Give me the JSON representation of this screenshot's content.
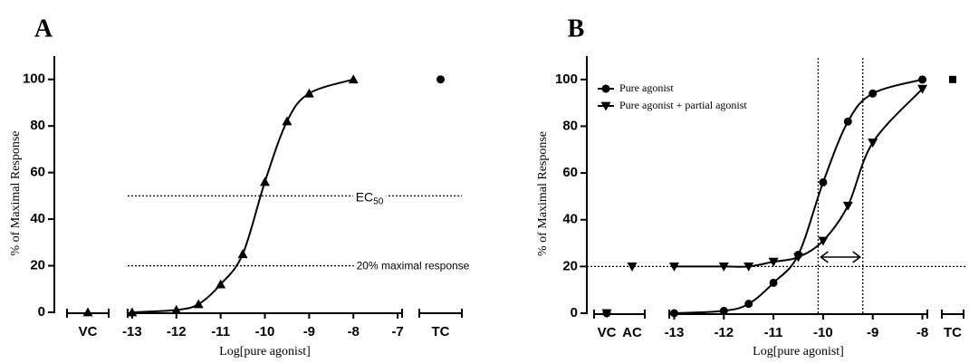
{
  "chart_data": [
    {
      "type": "line",
      "title": "A",
      "ylabel": "% of Maximal Response",
      "xlabel": "Log[pure agonist]",
      "ylim": [
        0,
        110
      ],
      "yticks": [
        0,
        20,
        40,
        60,
        80,
        100
      ],
      "xlim": [
        -13.1,
        -6.9
      ],
      "xticks": [
        -13,
        -12,
        -11,
        -10,
        -9,
        -8,
        -7
      ],
      "series": [
        {
          "color": "#000000",
          "marker": "triangle-up",
          "x": [
            -13,
            -12,
            -11.5,
            -11,
            -10.5,
            -10,
            -9.5,
            -9,
            -8
          ],
          "values": [
            0,
            1,
            3.5,
            12,
            25,
            56,
            82,
            94,
            100
          ]
        }
      ],
      "controls": {
        "left": [
          {
            "label": "VC",
            "points": [
              {
                "value": 0,
                "marker": "triangle-up"
              }
            ]
          }
        ],
        "right": [
          {
            "label": "TC",
            "points": [
              {
                "value": 100,
                "marker": "circle"
              }
            ]
          }
        ]
      },
      "hlines": [
        {
          "value": 50,
          "label": "EC",
          "label_sub": "50"
        },
        {
          "value": 20,
          "label": "20% maximal response"
        }
      ]
    },
    {
      "type": "line",
      "title": "B",
      "ylabel": "% of Maximal Response",
      "xlabel": "Log[pure agonist]",
      "ylim": [
        0,
        110
      ],
      "yticks": [
        0,
        20,
        40,
        60,
        80,
        100
      ],
      "xlim": [
        -13.1,
        -7.9
      ],
      "xticks": [
        -13,
        -12,
        -11,
        -10,
        -9,
        -8
      ],
      "legend": "upper left",
      "series": [
        {
          "name": "Pure agonist",
          "color": "#000000",
          "marker": "circle",
          "x": [
            -13,
            -12,
            -11.5,
            -11,
            -10.5,
            -10,
            -9.5,
            -9,
            -8
          ],
          "values": [
            0,
            1,
            4,
            13,
            25,
            56,
            82,
            94,
            100
          ]
        },
        {
          "name": "Pure agonist + partial agonist",
          "color": "#000000",
          "marker": "triangle-down",
          "x": [
            -13,
            -12,
            -11.5,
            -11,
            -10.5,
            -10,
            -9.5,
            -9,
            -8
          ],
          "values": [
            20,
            20,
            20,
            22,
            24,
            31,
            46,
            73,
            96
          ]
        }
      ],
      "controls": {
        "left": [
          {
            "label": "VC",
            "points": [
              {
                "value": 0,
                "marker": "circle"
              },
              {
                "value": 0,
                "marker": "triangle-down"
              }
            ]
          },
          {
            "label": "AC",
            "points": [
              {
                "value": 20,
                "marker": "triangle-down"
              }
            ]
          }
        ],
        "right": [
          {
            "label": "TC",
            "points": [
              {
                "value": 100,
                "marker": "square"
              }
            ]
          }
        ]
      },
      "hlines": [
        {
          "value": 20
        }
      ],
      "vlines": [
        {
          "value": -10.1
        },
        {
          "value": -9.2
        }
      ],
      "arrow": {
        "from": -10.1,
        "to": -9.2,
        "value": 24
      }
    }
  ]
}
